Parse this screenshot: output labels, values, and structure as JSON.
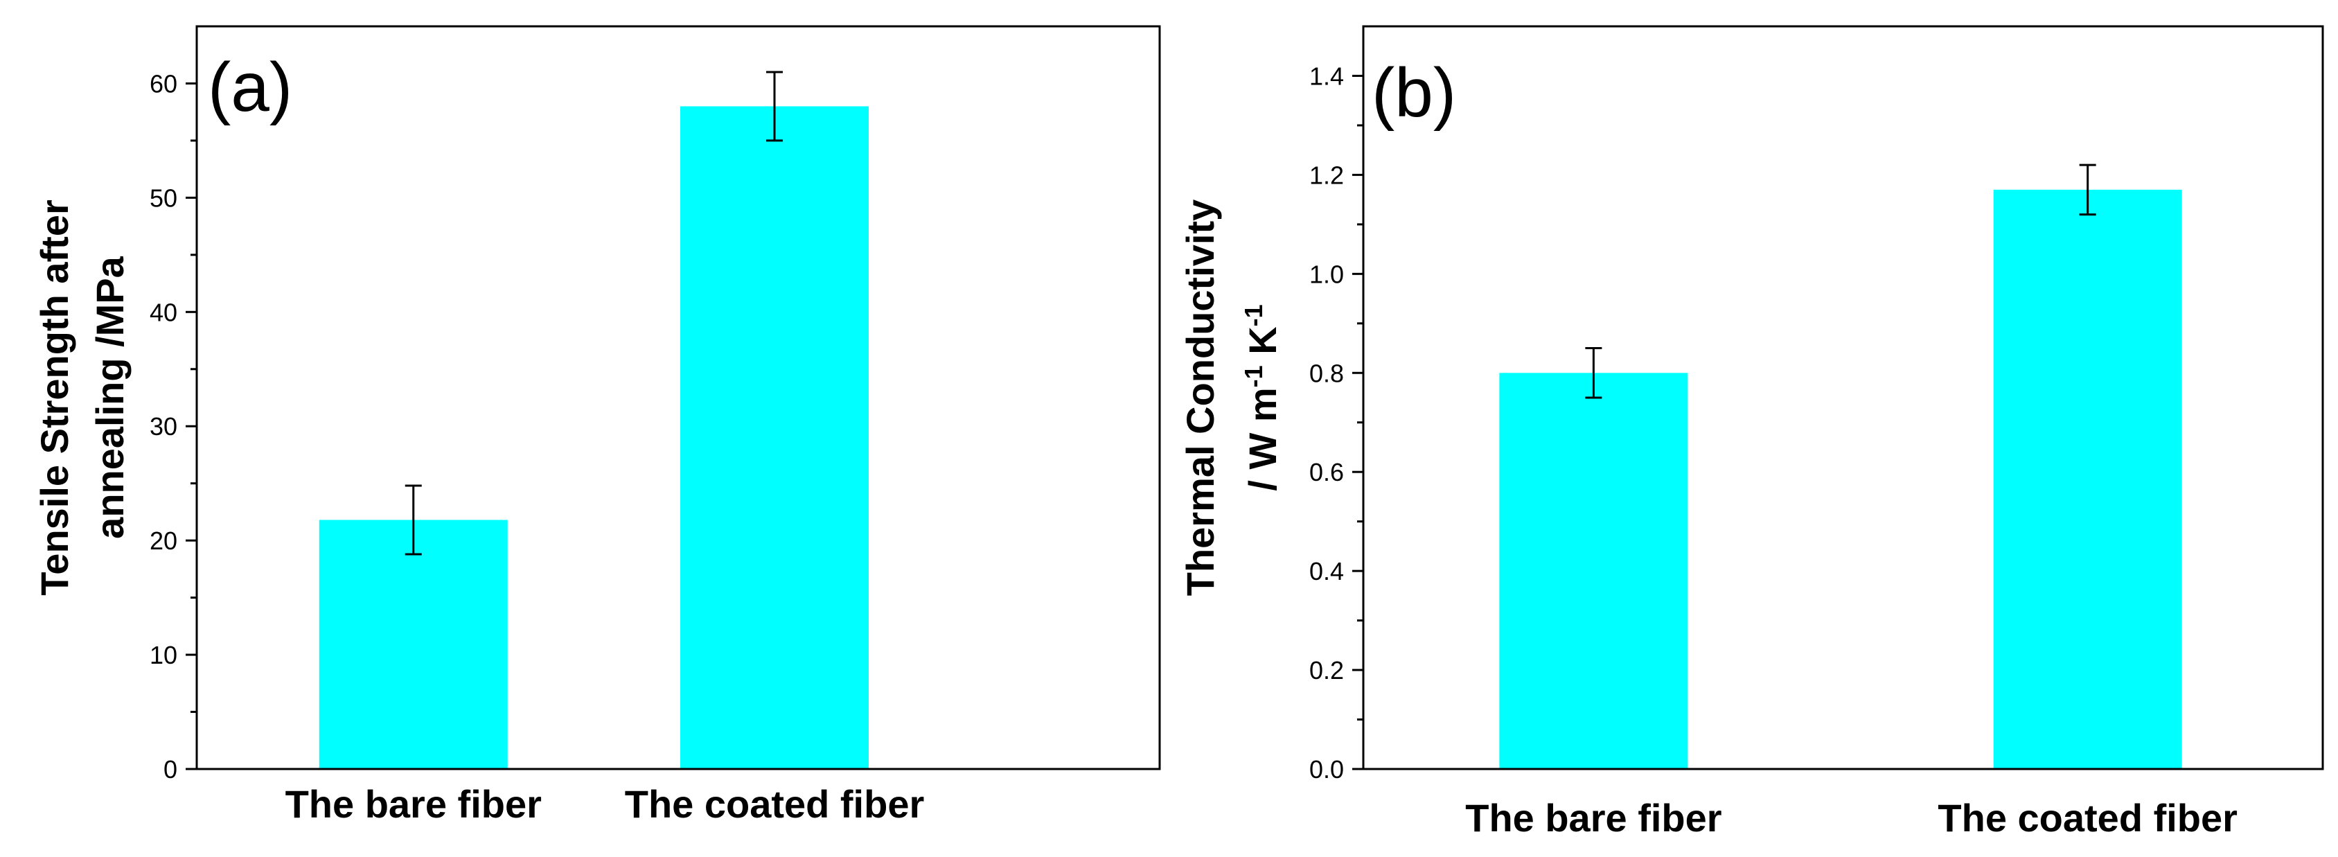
{
  "colors": {
    "bar": "#00ffff",
    "axis": "#000000",
    "background": "#ffffff"
  },
  "chart_data": [
    {
      "type": "bar",
      "panel_label": "(a)",
      "title": "",
      "categories": [
        "The bare fiber",
        "The coated fiber"
      ],
      "values": [
        21.8,
        58.0
      ],
      "errors": [
        3.0,
        3.0
      ],
      "ylabel_lines": [
        "Tensile Strength after",
        "annealing /MPa"
      ],
      "xlabel": "",
      "ylim": [
        0,
        65
      ],
      "yticks": [
        0,
        10,
        20,
        30,
        40,
        50,
        60
      ],
      "ytick_labels": [
        "0",
        "10",
        "20",
        "30",
        "40",
        "50",
        "60"
      ],
      "minor_tick_step": 5,
      "grid": false
    },
    {
      "type": "bar",
      "panel_label": "(b)",
      "title": "",
      "categories": [
        "The bare fiber",
        "The coated fiber"
      ],
      "values": [
        0.8,
        1.17
      ],
      "errors": [
        0.05,
        0.05
      ],
      "ylabel_lines": [
        "Thermal Conductivity",
        "/ W m",
        "-1",
        " K",
        "-1"
      ],
      "xlabel": "",
      "ylim": [
        0,
        1.5
      ],
      "yticks": [
        0,
        0.2,
        0.4,
        0.6,
        0.8,
        1.0,
        1.2,
        1.4
      ],
      "ytick_labels": [
        "0.0",
        "0.2",
        "0.4",
        "0.6",
        "0.8",
        "1.0",
        "1.2",
        "1.4"
      ],
      "minor_tick_step": 0.1,
      "grid": false
    }
  ]
}
